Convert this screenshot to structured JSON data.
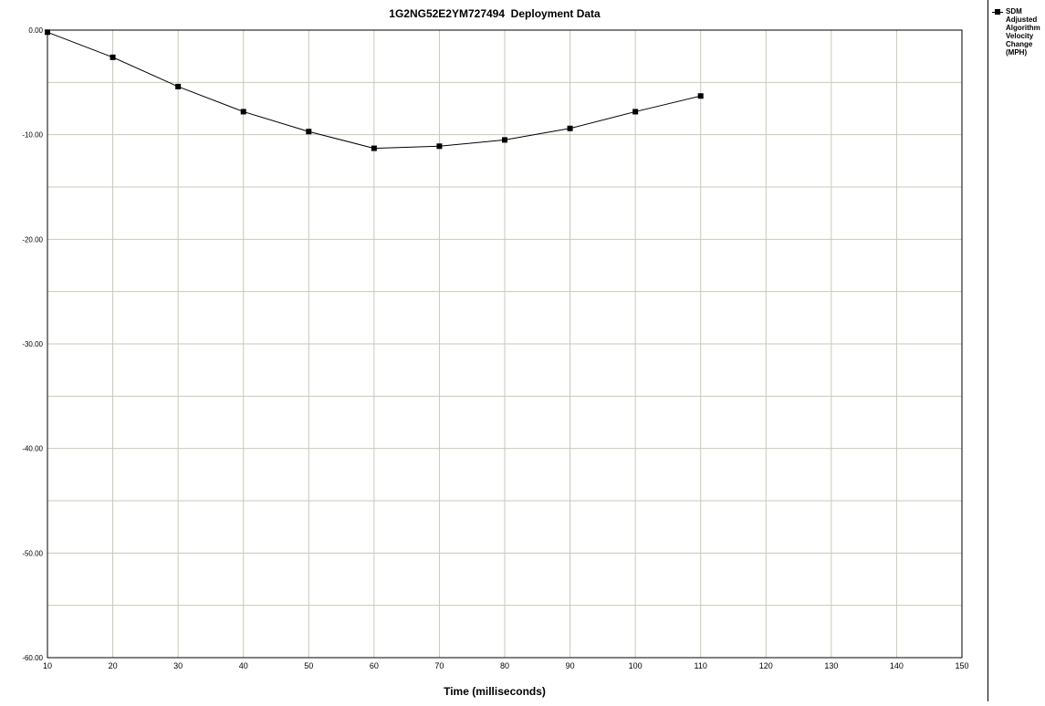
{
  "chart_data": {
    "type": "line",
    "title": "1G2NG52E2YM727494  Deployment Data",
    "xlabel": "Time (milliseconds)",
    "ylabel": "",
    "xlim": [
      10,
      150
    ],
    "ylim": [
      -60,
      0
    ],
    "x_ticks": [
      10,
      20,
      30,
      40,
      50,
      60,
      70,
      80,
      90,
      100,
      110,
      120,
      130,
      140,
      150
    ],
    "y_ticks": [
      0,
      -10,
      -20,
      -30,
      -40,
      -50,
      -60
    ],
    "y_tick_labels": [
      "0.00",
      "-10.00",
      "-20.00",
      "-30.00",
      "-40.00",
      "-50.00",
      "-60.00"
    ],
    "y_minor_step": 5,
    "grid": true,
    "legend_position": "right",
    "series": [
      {
        "name": "SDM\nAdjusted\nAlgorithm\nVelocity\nChange\n(MPH)",
        "color": "#000000",
        "marker": "square",
        "x": [
          10,
          20,
          30,
          40,
          50,
          60,
          70,
          80,
          90,
          100,
          110
        ],
        "values": [
          -0.2,
          -2.6,
          -5.4,
          -7.8,
          -9.7,
          -11.3,
          -11.1,
          -10.5,
          -9.4,
          -7.8,
          -6.3
        ]
      }
    ]
  }
}
